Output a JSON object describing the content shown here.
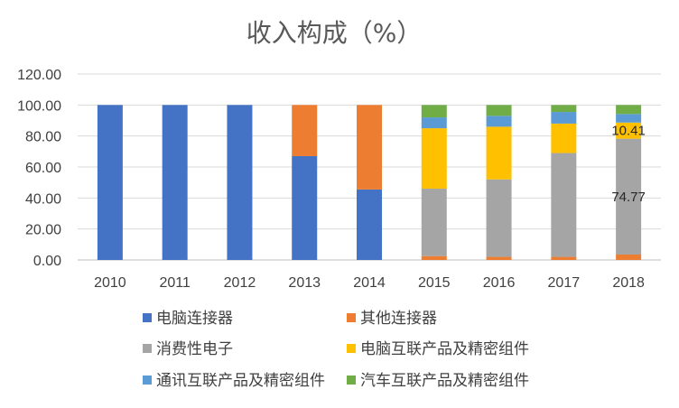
{
  "chart_data": {
    "type": "bar",
    "stacked": true,
    "title": "收入构成（%）",
    "xlabel": "",
    "ylabel": "",
    "ylim": [
      0,
      120
    ],
    "yticks": [
      "0.00",
      "20.00",
      "40.00",
      "60.00",
      "80.00",
      "100.00",
      "120.00"
    ],
    "grid": true,
    "legend_position": "bottom",
    "categories": [
      "2010",
      "2011",
      "2012",
      "2013",
      "2014",
      "2015",
      "2016",
      "2017",
      "2018"
    ],
    "series": [
      {
        "name": "电脑连接器",
        "color": "#4472C4",
        "values": [
          100,
          100,
          100,
          67,
          45.5,
          0,
          0,
          0,
          0
        ]
      },
      {
        "name": "其他连接器",
        "color": "#ED7D31",
        "values": [
          0,
          0,
          0,
          33,
          54.5,
          2.5,
          2,
          2,
          3.5
        ]
      },
      {
        "name": "消费性电子",
        "color": "#A5A5A5",
        "values": [
          0,
          0,
          0,
          0,
          0,
          43.5,
          50,
          67,
          74.77
        ]
      },
      {
        "name": "电脑互联产品及精密组件",
        "color": "#FFC000",
        "values": [
          0,
          0,
          0,
          0,
          0,
          39,
          34,
          19,
          10.41
        ]
      },
      {
        "name": "通讯互联产品及精密组件",
        "color": "#5B9BD5",
        "values": [
          0,
          0,
          0,
          0,
          0,
          7,
          7,
          7.5,
          5.5
        ]
      },
      {
        "name": "汽车互联产品及精密组件",
        "color": "#70AD47",
        "values": [
          0,
          0,
          0,
          0,
          0,
          8,
          7,
          4.5,
          5.82
        ]
      }
    ],
    "data_labels": [
      {
        "category": "2018",
        "series": "消费性电子",
        "text": "74.77"
      },
      {
        "category": "2018",
        "series": "电脑互联产品及精密组件",
        "text": "10.41"
      }
    ]
  }
}
